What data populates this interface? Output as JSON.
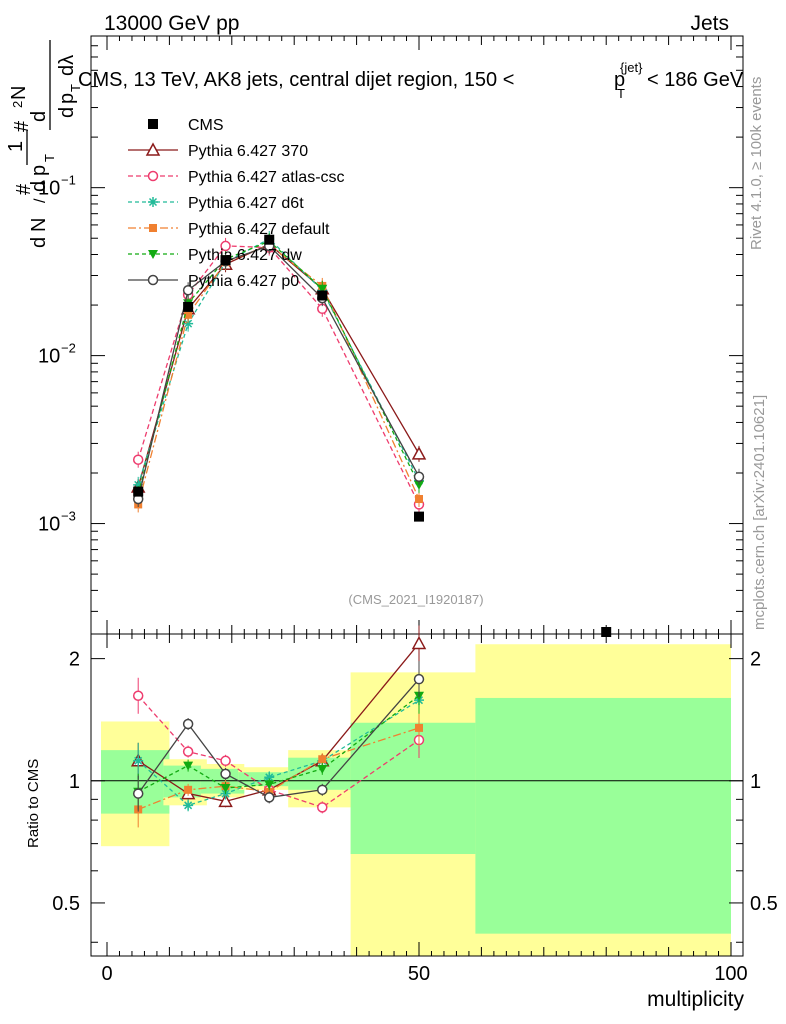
{
  "header": {
    "left": "13000 GeV pp",
    "right": "Jets"
  },
  "side_labels": {
    "rivet": "Rivet 4.1.0, ≥ 100k events",
    "mcplots": "mcplots.cern.ch [arXiv:2401.10621]"
  },
  "chart_data": {
    "type": "line",
    "title_parts": {
      "prefix": "CMS, 13 TeV, AK8 jets, central dijet region, 150 <",
      "p": "p",
      "sub": "T",
      "sup": "{jet}",
      "suffix": "< 186 GeV"
    },
    "analysis_id": "(CMS_2021_I1920187)",
    "xlabel": "multiplicity",
    "ylabel_parts": {
      "one": "1",
      "N": "N",
      "d": "d",
      "dN": "d",
      "p": "p",
      "T": "T",
      "hash": "#",
      "lambda": "dλ",
      "sup2": "2"
    },
    "ratio_ylabel": "Ratio to CMS",
    "xlim": [
      -4,
      102
    ],
    "ylim_main": [
      0.00022,
      0.8
    ],
    "ylim_ratio": [
      0.37,
      2.3
    ],
    "x_ticks": [
      "0",
      "50",
      "100"
    ],
    "main_y_ticks": [
      {
        "base": "10",
        "exp": "−1",
        "value": 0.1
      },
      {
        "base": "10",
        "exp": "−2",
        "value": 0.01
      },
      {
        "base": "10",
        "exp": "−3",
        "value": 0.001
      }
    ],
    "ratio_y_ticks": [
      "2",
      "1",
      "0.5"
    ],
    "ratio_y_values": [
      2,
      1,
      0.5
    ],
    "band_bins": [
      {
        "lo": 0,
        "hi": 10,
        "green": [
          0.83,
          1.19
        ],
        "yellow": [
          0.69,
          1.4
        ]
      },
      {
        "lo": 10,
        "hi": 16,
        "green": [
          0.91,
          1.09
        ],
        "yellow": [
          0.87,
          1.13
        ]
      },
      {
        "lo": 16,
        "hi": 22,
        "green": [
          0.93,
          1.07
        ],
        "yellow": [
          0.91,
          1.1
        ]
      },
      {
        "lo": 22,
        "hi": 30,
        "green": [
          0.97,
          1.05
        ],
        "yellow": [
          0.95,
          1.08
        ]
      },
      {
        "lo": 30,
        "hi": 40,
        "green": [
          0.95,
          1.14
        ],
        "yellow": [
          0.86,
          1.19
        ]
      },
      {
        "lo": 40,
        "hi": 60,
        "green": [
          0.66,
          1.39
        ],
        "yellow": [
          0.3,
          1.85
        ]
      },
      {
        "lo": 60,
        "hi": 100,
        "green": [
          0.42,
          1.6
        ],
        "yellow": [
          0.3,
          2.17
        ]
      }
    ],
    "data_series": {
      "name": "CMS",
      "x": [
        5,
        13,
        19,
        26,
        34.5,
        50,
        80
      ],
      "y": [
        0.00155,
        0.0195,
        0.037,
        0.049,
        0.0228,
        0.0011,
        0.00022
      ]
    },
    "series": [
      {
        "name": "Pythia 6.427 370",
        "color": "#8b1a1a",
        "marker": "triangle-open",
        "dash": "",
        "x": [
          5,
          13,
          19,
          26,
          34.5,
          50
        ],
        "y": [
          0.00165,
          0.019,
          0.035,
          0.046,
          0.025,
          0.0026
        ],
        "ratio": [
          1.12,
          0.93,
          0.89,
          0.95,
          1.12,
          2.18
        ]
      },
      {
        "name": "Pythia 6.427 atlas-csc",
        "color": "#ee3c6e",
        "marker": "circle-open",
        "dash": "5,3",
        "x": [
          5,
          13,
          19,
          26,
          34.5,
          50
        ],
        "y": [
          0.0024,
          0.023,
          0.045,
          0.044,
          0.019,
          0.0013
        ],
        "ratio": [
          1.62,
          1.18,
          1.12,
          0.95,
          0.86,
          1.26
        ]
      },
      {
        "name": "Pythia 6.427 d6t",
        "color": "#22bb99",
        "marker": "star",
        "dash": "4,3",
        "x": [
          5,
          13,
          19,
          26,
          34.5,
          50
        ],
        "y": [
          0.0017,
          0.0155,
          0.036,
          0.0495,
          0.0245,
          0.0018
        ],
        "ratio": [
          1.12,
          0.87,
          0.93,
          1.02,
          1.12,
          1.58
        ]
      },
      {
        "name": "Pythia 6.427 default",
        "color": "#f08030",
        "marker": "square",
        "dash": "8,3,2,3",
        "x": [
          5,
          13,
          19,
          26,
          34.5,
          50
        ],
        "y": [
          0.0013,
          0.0175,
          0.036,
          0.0455,
          0.026,
          0.0014
        ],
        "ratio": [
          0.85,
          0.95,
          0.97,
          0.94,
          1.13,
          1.35
        ]
      },
      {
        "name": "Pythia 6.427 dw",
        "color": "#11aa11",
        "marker": "triangle-down",
        "dash": "4,3",
        "x": [
          5,
          13,
          19,
          26,
          34.5,
          50
        ],
        "y": [
          0.0015,
          0.0205,
          0.0375,
          0.048,
          0.025,
          0.0017
        ],
        "ratio": [
          0.94,
          1.09,
          0.96,
          0.98,
          1.07,
          1.62
        ]
      },
      {
        "name": "Pythia 6.427 p0",
        "color": "#444444",
        "marker": "circle-open",
        "dash": "",
        "x": [
          5,
          13,
          19,
          26,
          34.5,
          50
        ],
        "y": [
          0.0014,
          0.0245,
          0.0365,
          0.045,
          0.022,
          0.0019
        ],
        "ratio": [
          0.93,
          1.38,
          1.04,
          0.91,
          0.95,
          1.78
        ]
      }
    ],
    "legend_placement": "top-left"
  }
}
